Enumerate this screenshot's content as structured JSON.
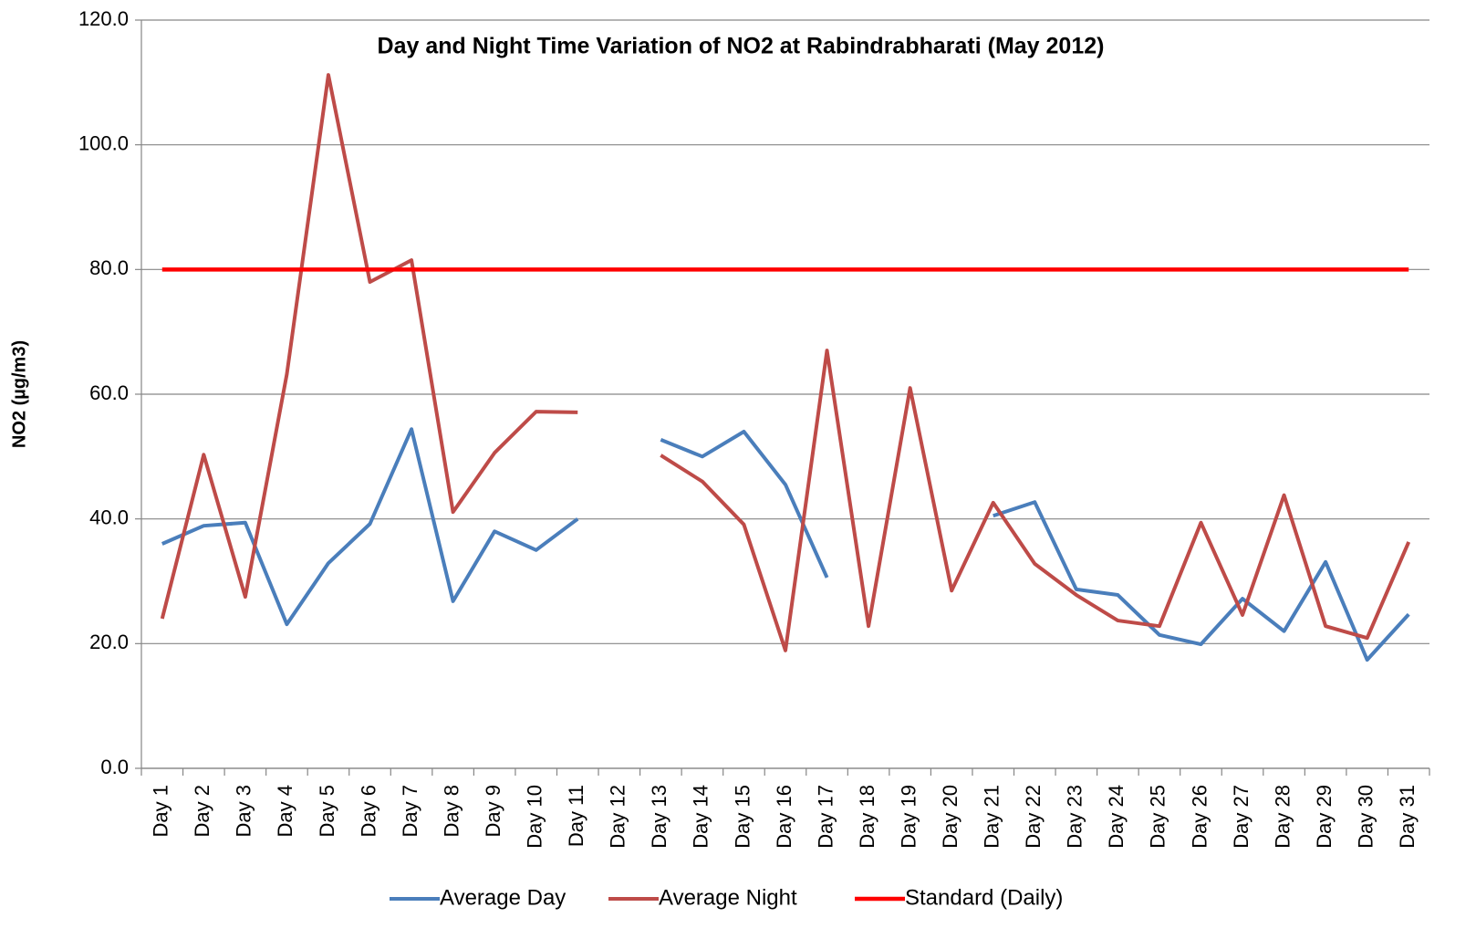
{
  "chart_data": {
    "type": "line",
    "title": "Day and Night Time Variation of NO2 at Rabindrabharati (May 2012)",
    "y_label": "NO2 (µg/m3)",
    "categories": [
      "Day 1",
      "Day 2",
      "Day 3",
      "Day 4",
      "Day 5",
      "Day 6",
      "Day 7",
      "Day 8",
      "Day 9",
      "Day 10",
      "Day 11",
      "Day 12",
      "Day 13",
      "Day 14",
      "Day 15",
      "Day 16",
      "Day 17",
      "Day 18",
      "Day 19",
      "Day 20",
      "Day 21",
      "Day 22",
      "Day 23",
      "Day 24",
      "Day 25",
      "Day 26",
      "Day 27",
      "Day 28",
      "Day 29",
      "Day 30",
      "Day 31"
    ],
    "series": [
      {
        "name": "Average Day",
        "color": "#4a7ebb",
        "values": [
          36.0,
          38.9,
          39.4,
          23.1,
          32.9,
          39.2,
          54.4,
          26.8,
          38.0,
          35.0,
          40.0,
          null,
          52.7,
          50.0,
          54.0,
          45.5,
          30.6,
          null,
          null,
          null,
          40.5,
          42.7,
          28.7,
          27.8,
          21.4,
          19.9,
          27.2,
          22.0,
          33.1,
          17.4,
          24.7
        ]
      },
      {
        "name": "Average Night",
        "color": "#be4b48",
        "values": [
          24.0,
          50.3,
          27.5,
          63.2,
          111.2,
          78.0,
          81.5,
          41.1,
          50.6,
          57.2,
          57.1,
          null,
          50.2,
          46.0,
          39.1,
          18.9,
          67.0,
          22.8,
          61.0,
          28.5,
          42.6,
          32.8,
          27.8,
          23.7,
          22.8,
          39.4,
          24.6,
          43.8,
          22.8,
          20.9,
          36.3
        ]
      },
      {
        "name": "Standard (Daily)",
        "color": "#ff0000",
        "values": [
          80,
          80,
          80,
          80,
          80,
          80,
          80,
          80,
          80,
          80,
          80,
          80,
          80,
          80,
          80,
          80,
          80,
          80,
          80,
          80,
          80,
          80,
          80,
          80,
          80,
          80,
          80,
          80,
          80,
          80,
          80
        ]
      }
    ],
    "ylim": [
      0,
      120
    ],
    "yticks": [
      {
        "value": 0,
        "label": "0.0"
      },
      {
        "value": 20,
        "label": "20.0"
      },
      {
        "value": 40,
        "label": "40.0"
      },
      {
        "value": 60,
        "label": "60.0"
      },
      {
        "value": 80,
        "label": "80.0"
      },
      {
        "value": 100,
        "label": "100.0"
      },
      {
        "value": 120,
        "label": "120.0"
      }
    ],
    "grid": true,
    "legend": "bottom"
  }
}
